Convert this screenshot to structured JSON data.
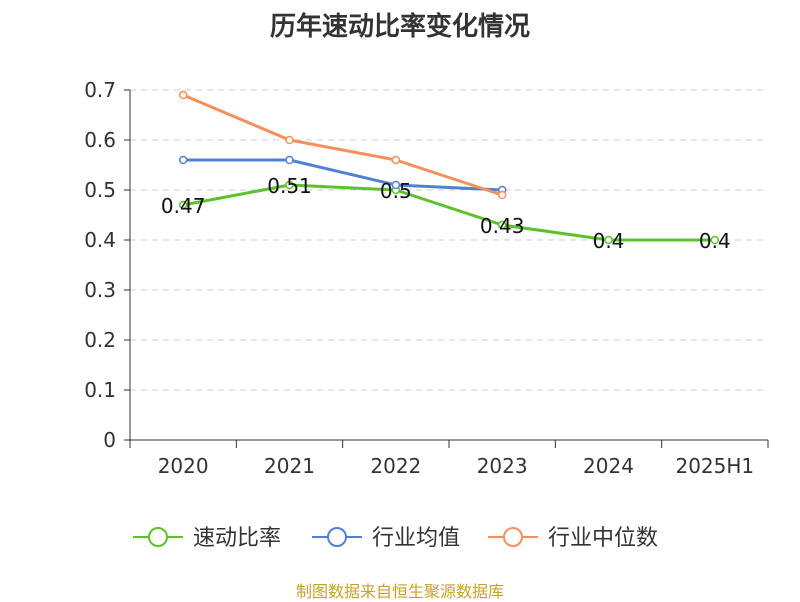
{
  "chart_data": {
    "type": "line",
    "title": "历年速动比率变化情况",
    "categories": [
      "2020",
      "2021",
      "2022",
      "2023",
      "2024",
      "2025H1"
    ],
    "ylim": [
      0,
      0.7
    ],
    "yticks": [
      "0",
      "0.1",
      "0.2",
      "0.3",
      "0.4",
      "0.5",
      "0.6",
      "0.7"
    ],
    "grid": true,
    "legend_position": "bottom",
    "series": [
      {
        "name": "速动比率",
        "color": "#5cc22c",
        "values": [
          0.47,
          0.51,
          0.5,
          0.43,
          0.4,
          0.4
        ],
        "labels": [
          "0.47",
          "0.51",
          "0.5",
          "0.43",
          "0.4",
          "0.4"
        ],
        "show_labels": true
      },
      {
        "name": "行业均值",
        "color": "#4f81d9",
        "values": [
          0.56,
          0.56,
          0.51,
          0.5,
          null,
          null
        ],
        "show_labels": false
      },
      {
        "name": "行业中位数",
        "color": "#f5905a",
        "values": [
          0.69,
          0.6,
          0.56,
          0.49,
          null,
          null
        ],
        "show_labels": false
      }
    ]
  },
  "source_note": "制图数据来自恒生聚源数据库"
}
